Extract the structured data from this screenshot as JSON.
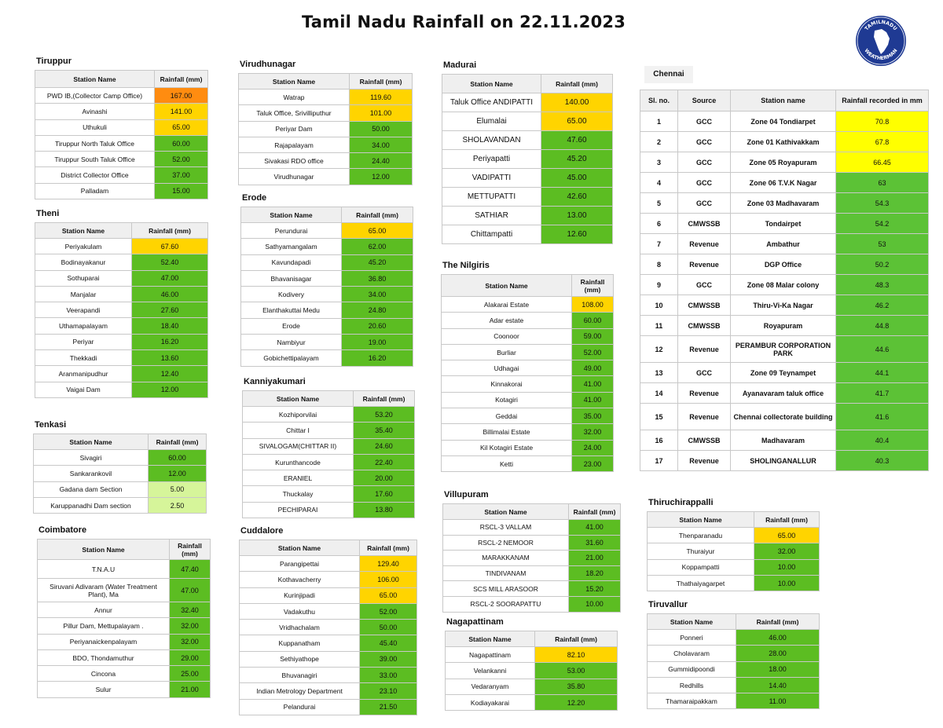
{
  "title": "Tamil Nadu Rainfall on 22.11.2023",
  "logo": {
    "text_top": "TAMILNADU",
    "text_bottom": "WEATHERMAN",
    "color": "#1f3a93"
  },
  "colors": {
    "green": "#5cbd22",
    "yellow": "#ffd400",
    "orange": "#ff8c10",
    "light_green": "#d6f59a",
    "chennai_yellow": "#ffff00"
  },
  "tiruppur": {
    "title": "Tiruppur",
    "col_station": "Station Name",
    "col_rain": "Rainfall (mm)",
    "rows": [
      {
        "station": "PWD IB,(Collector Camp Office)",
        "rain": "167.00"
      },
      {
        "station": "Avinashi",
        "rain": "141.00"
      },
      {
        "station": "Uthukuli",
        "rain": "65.00"
      },
      {
        "station": "Tiruppur North Taluk Office",
        "rain": "60.00"
      },
      {
        "station": "Tiruppur South Taluk Office",
        "rain": "52.00"
      },
      {
        "station": "District Collector Office",
        "rain": "37.00"
      },
      {
        "station": "Palladam",
        "rain": "15.00"
      }
    ]
  },
  "theni": {
    "title": "Theni",
    "col_station": "Station Name",
    "col_rain": "Rainfall (mm)",
    "rows": [
      {
        "station": "Periyakulam",
        "rain": "67.60"
      },
      {
        "station": "Bodinayakanur",
        "rain": "52.40"
      },
      {
        "station": "Sothuparai",
        "rain": "47.00"
      },
      {
        "station": "Manjalar",
        "rain": "46.00"
      },
      {
        "station": "Veerapandi",
        "rain": "27.60"
      },
      {
        "station": "Uthamapalayam",
        "rain": "18.40"
      },
      {
        "station": "Periyar",
        "rain": "16.20"
      },
      {
        "station": "Thekkadi",
        "rain": "13.60"
      },
      {
        "station": "Aranmanipudhur",
        "rain": "12.40"
      },
      {
        "station": "Vaigai Dam",
        "rain": "12.00"
      }
    ]
  },
  "tenkasi": {
    "title": "Tenkasi",
    "col_station": "Station Name",
    "col_rain": "Rainfall (mm)",
    "rows": [
      {
        "station": "Sivagiri",
        "rain": "60.00"
      },
      {
        "station": "Sankarankovil",
        "rain": "12.00"
      },
      {
        "station": "Gadana dam Section",
        "rain": "5.00"
      },
      {
        "station": "Karuppanadhi Dam section",
        "rain": "2.50"
      }
    ]
  },
  "coimbatore": {
    "title": "Coimbatore",
    "col_station": "Station Name",
    "col_rain": "Rainfall (mm)",
    "rows": [
      {
        "station": "T.N.A.U",
        "rain": "47.40"
      },
      {
        "station": "Siruvani Adivaram (Water Treatment Plant), Ma",
        "rain": "47.00"
      },
      {
        "station": "Annur",
        "rain": "32.40"
      },
      {
        "station": "Pillur Dam, Mettupalayam .",
        "rain": "32.00"
      },
      {
        "station": "Periyanaickenpalayam",
        "rain": "32.00"
      },
      {
        "station": "BDO, Thondamuthur",
        "rain": "29.00"
      },
      {
        "station": "Cincona",
        "rain": "25.00"
      },
      {
        "station": "Sulur",
        "rain": "21.00"
      }
    ]
  },
  "virudhunagar": {
    "title": "Virudhunagar",
    "col_station": "Station Name",
    "col_rain": "Rainfall (mm)",
    "rows": [
      {
        "station": "Watrap",
        "rain": "119.60"
      },
      {
        "station": "Taluk Office, Srivilliputhur",
        "rain": "101.00"
      },
      {
        "station": "Periyar Dam",
        "rain": "50.00"
      },
      {
        "station": "Rajapalayam",
        "rain": "34.00"
      },
      {
        "station": "Sivakasi RDO office",
        "rain": "24.40"
      },
      {
        "station": "Virudhunagar",
        "rain": "12.00"
      }
    ]
  },
  "erode": {
    "title": "Erode",
    "col_station": "Station Name",
    "col_rain": "Rainfall (mm)",
    "rows": [
      {
        "station": "Perundurai",
        "rain": "65.00"
      },
      {
        "station": "Sathyamangalam",
        "rain": "62.00"
      },
      {
        "station": "Kavundapadi",
        "rain": "45.20"
      },
      {
        "station": "Bhavanisagar",
        "rain": "36.80"
      },
      {
        "station": "Kodivery",
        "rain": "34.00"
      },
      {
        "station": "Elanthakuttai Medu",
        "rain": "24.80"
      },
      {
        "station": "Erode",
        "rain": "20.60"
      },
      {
        "station": "Nambiyur",
        "rain": "19.00"
      },
      {
        "station": "Gobichettipalayam",
        "rain": "16.20"
      }
    ]
  },
  "kanniyakumari": {
    "title": "Kanniyakumari",
    "col_station": "Station Name",
    "col_rain": "Rainfall (mm)",
    "rows": [
      {
        "station": "Kozhiporvilai",
        "rain": "53.20"
      },
      {
        "station": "Chittar I",
        "rain": "35.40"
      },
      {
        "station": "SIVALOGAM(CHITTAR II)",
        "rain": "24.60"
      },
      {
        "station": "Kurunthancode",
        "rain": "22.40"
      },
      {
        "station": "ERANIEL",
        "rain": "20.00"
      },
      {
        "station": "Thuckalay",
        "rain": "17.60"
      },
      {
        "station": "PECHIPARAI",
        "rain": "13.80"
      }
    ]
  },
  "cuddalore": {
    "title": "Cuddalore",
    "col_station": "Station Name",
    "col_rain": "Rainfall (mm)",
    "rows": [
      {
        "station": "Parangipettai",
        "rain": "129.40"
      },
      {
        "station": "Kothavacherry",
        "rain": "106.00"
      },
      {
        "station": "Kurinjipadi",
        "rain": "65.00"
      },
      {
        "station": "Vadakuthu",
        "rain": "52.00"
      },
      {
        "station": "Vridhachalam",
        "rain": "50.00"
      },
      {
        "station": "Kuppanatham",
        "rain": "45.40"
      },
      {
        "station": "Sethiyathope",
        "rain": "39.00"
      },
      {
        "station": "Bhuvanagiri",
        "rain": "33.00"
      },
      {
        "station": "Indian Metrology Department",
        "rain": "23.10"
      },
      {
        "station": "Pelandurai",
        "rain": "21.50"
      }
    ]
  },
  "madurai": {
    "title": "Madurai",
    "col_station": "Station Name",
    "col_rain": "Rainfall (mm)",
    "rows": [
      {
        "station": "Taluk Office ANDIPATTI",
        "rain": "140.00"
      },
      {
        "station": "Elumalai",
        "rain": "65.00"
      },
      {
        "station": "SHOLAVANDAN",
        "rain": "47.60"
      },
      {
        "station": "Periyapatti",
        "rain": "45.20"
      },
      {
        "station": "VADIPATTI",
        "rain": "45.00"
      },
      {
        "station": "METTUPATTI",
        "rain": "42.60"
      },
      {
        "station": "SATHIAR",
        "rain": "13.00"
      },
      {
        "station": "Chittampatti",
        "rain": "12.60"
      }
    ]
  },
  "nilgiris": {
    "title": "The Nilgiris",
    "col_station": "Station Name",
    "col_rain": "Rainfall (mm)",
    "rows": [
      {
        "station": "Alakarai Estate",
        "rain": "108.00"
      },
      {
        "station": "Adar estate",
        "rain": "60.00"
      },
      {
        "station": "Coonoor",
        "rain": "59.00"
      },
      {
        "station": "Burliar",
        "rain": "52.00"
      },
      {
        "station": "Udhagai",
        "rain": "49.00"
      },
      {
        "station": "Kinnakorai",
        "rain": "41.00"
      },
      {
        "station": "Kotagiri",
        "rain": "41.00"
      },
      {
        "station": "Geddai",
        "rain": "35.00"
      },
      {
        "station": "Billimalai Estate",
        "rain": "32.00"
      },
      {
        "station": "Kil Kotagiri Estate",
        "rain": "24.00"
      },
      {
        "station": "Ketti",
        "rain": "23.00"
      }
    ]
  },
  "villupuram": {
    "title": "Villupuram",
    "col_station": "Station Name",
    "col_rain": "Rainfall (mm)",
    "rows": [
      {
        "station": "RSCL-3 VALLAM",
        "rain": "41.00"
      },
      {
        "station": "RSCL-2 NEMOOR",
        "rain": "31.60"
      },
      {
        "station": "MARAKKANAM",
        "rain": "21.00"
      },
      {
        "station": "TINDIVANAM",
        "rain": "18.20"
      },
      {
        "station": "SCS MILL ARASOOR",
        "rain": "15.20"
      },
      {
        "station": "RSCL-2 SOORAPATTU",
        "rain": "10.00"
      }
    ]
  },
  "nagapattinam": {
    "title": "Nagapattinam",
    "col_station": "Station Name",
    "col_rain": "Rainfall (mm)",
    "rows": [
      {
        "station": "Nagapattinam",
        "rain": "82.10"
      },
      {
        "station": "Velankanni",
        "rain": "53.00"
      },
      {
        "station": "Vedaranyam",
        "rain": "35.80"
      },
      {
        "station": "Kodiayakarai",
        "rain": "12.20"
      }
    ]
  },
  "chennai": {
    "title": "Chennai",
    "col_slno": "Sl. no.",
    "col_source": "Source",
    "col_station": "Station name",
    "col_rain": "Rainfall recorded in mm",
    "rows": [
      {
        "sl": "1",
        "source": "GCC",
        "station": "Zone 04 Tondiarpet",
        "rain": "70.8"
      },
      {
        "sl": "2",
        "source": "GCC",
        "station": "Zone 01 Kathivakkam",
        "rain": "67.8"
      },
      {
        "sl": "3",
        "source": "GCC",
        "station": "Zone 05 Royapuram",
        "rain": "66.45"
      },
      {
        "sl": "4",
        "source": "GCC",
        "station": "Zone 06 T.V.K Nagar",
        "rain": "63"
      },
      {
        "sl": "5",
        "source": "GCC",
        "station": "Zone 03 Madhavaram",
        "rain": "54.3"
      },
      {
        "sl": "6",
        "source": "CMWSSB",
        "station": "Tondairpet",
        "rain": "54.2"
      },
      {
        "sl": "7",
        "source": "Revenue",
        "station": "Ambathur",
        "rain": "53"
      },
      {
        "sl": "8",
        "source": "Revenue",
        "station": "DGP Office",
        "rain": "50.2"
      },
      {
        "sl": "9",
        "source": "GCC",
        "station": "Zone 08 Malar colony",
        "rain": "48.3"
      },
      {
        "sl": "10",
        "source": "CMWSSB",
        "station": "Thiru-Vi-Ka Nagar",
        "rain": "46.2"
      },
      {
        "sl": "11",
        "source": "CMWSSB",
        "station": "Royapuram",
        "rain": "44.8"
      },
      {
        "sl": "12",
        "source": "Revenue",
        "station": "PERAMBUR CORPORATION PARK",
        "rain": "44.6"
      },
      {
        "sl": "13",
        "source": "GCC",
        "station": "Zone 09 Teynampet",
        "rain": "44.1"
      },
      {
        "sl": "14",
        "source": "Revenue",
        "station": "Ayanavaram taluk office",
        "rain": "41.7"
      },
      {
        "sl": "15",
        "source": "Revenue",
        "station": "Chennai collectorate building",
        "rain": "41.6"
      },
      {
        "sl": "16",
        "source": "CMWSSB",
        "station": "Madhavaram",
        "rain": "40.4"
      },
      {
        "sl": "17",
        "source": "Revenue",
        "station": "SHOLINGANALLUR",
        "rain": "40.3"
      }
    ]
  },
  "thiruchirappalli": {
    "title": "Thiruchirappalli",
    "col_station": "Station Name",
    "col_rain": "Rainfall (mm)",
    "rows": [
      {
        "station": "Thenparanadu",
        "rain": "65.00"
      },
      {
        "station": "Thuraiyur",
        "rain": "32.00"
      },
      {
        "station": "Koppampatti",
        "rain": "10.00"
      },
      {
        "station": "Thathaiyagarpet",
        "rain": "10.00"
      }
    ]
  },
  "tiruvallur": {
    "title": "Tiruvallur",
    "col_station": "Station Name",
    "col_rain": "Rainfall (mm)",
    "rows": [
      {
        "station": "Ponneri",
        "rain": "46.00"
      },
      {
        "station": "Cholavaram",
        "rain": "28.00"
      },
      {
        "station": "Gummidipoondi",
        "rain": "18.00"
      },
      {
        "station": "Redhills",
        "rain": "14.40"
      },
      {
        "station": "Thamaraipakkam",
        "rain": "11.00"
      }
    ]
  }
}
